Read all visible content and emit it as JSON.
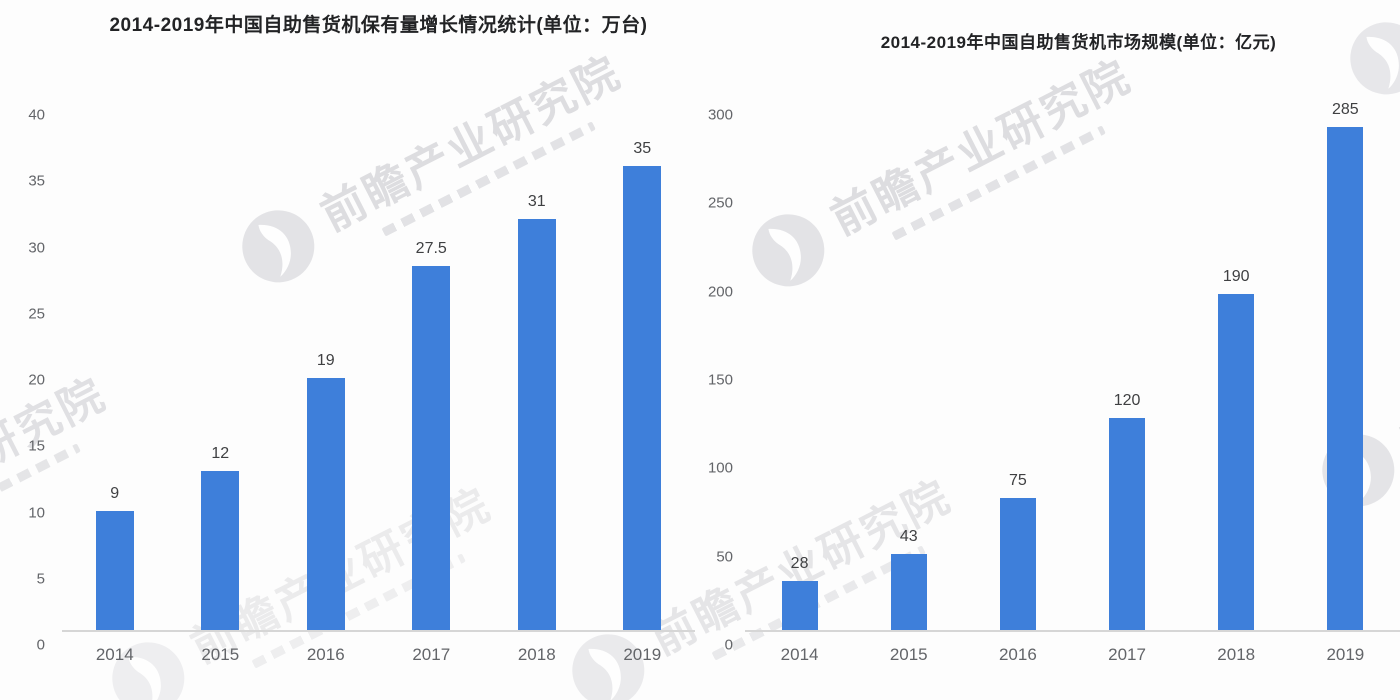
{
  "watermark": {
    "text": "前瞻产业研究院",
    "logo": "qianzhan-circle-logo",
    "color": "#babac0"
  },
  "chart_data": [
    {
      "type": "bar",
      "title": "2014-2019年中国自助售货机保有量增长情况统计(单位：万台)",
      "categories": [
        "2014",
        "2015",
        "2016",
        "2017",
        "2018",
        "2019"
      ],
      "values": [
        9,
        12,
        19,
        27.5,
        31,
        35
      ],
      "data_labels": [
        "9",
        "12",
        "19",
        "27.5",
        "31",
        "35"
      ],
      "xlabel": "",
      "ylabel": "",
      "unit": "万台",
      "ylim": [
        0,
        40
      ],
      "yticks": [
        0,
        5,
        10,
        15,
        20,
        25,
        30,
        35,
        40
      ],
      "grid": false,
      "legend_position": "none",
      "bar_color": "#3e7fda"
    },
    {
      "type": "bar",
      "title": "2014-2019年中国自助售货机市场规模(单位：亿元)",
      "categories": [
        "2014",
        "2015",
        "2016",
        "2017",
        "2018",
        "2019"
      ],
      "values": [
        28,
        43,
        75,
        120,
        190,
        285
      ],
      "data_labels": [
        "28",
        "43",
        "75",
        "120",
        "190",
        "285"
      ],
      "xlabel": "",
      "ylabel": "",
      "unit": "亿元",
      "ylim": [
        0,
        300
      ],
      "yticks": [
        0,
        50,
        100,
        150,
        200,
        250,
        300
      ],
      "grid": false,
      "legend_position": "none",
      "bar_color": "#3e7fda"
    }
  ]
}
